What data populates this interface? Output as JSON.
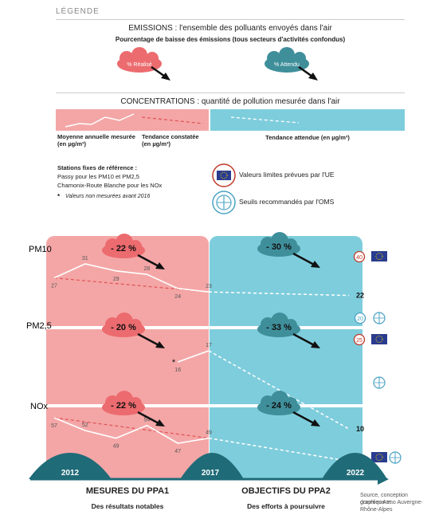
{
  "legend": {
    "tag": "LÉGENDE",
    "emissions_title": "EMISSIONS : l'ensemble des polluants envoyés dans l'air",
    "emissions_subtitle": "Pourcentage de baisse des émissions (tous secteurs d'activités confondus)",
    "cloud_realise": "% Réalisé",
    "cloud_attendu": "% Attendu",
    "concentrations_title": "CONCENTRATIONS : quantité de pollution mesurée dans l'air",
    "moyenne_label": "Moyenne annuelle mesurée (en µg/m³)",
    "tendance_constatee_label": "Tendance constatée (en µg/m³)",
    "tendance_attendue_label": "Tendance attendue (en µg/m³)",
    "stations_title": "Stations fixes de référence :",
    "stations_line1": "Passy pour les PM10 et PM2,5",
    "stations_line2": "Chamonix-Route Blanche pour les NOx",
    "stations_note_star": "*",
    "stations_note": "Valeurs non mesurées avant 2016",
    "ue_label": "Valeurs limites prévues par l'UE",
    "oms_label": "Seuils recommandés par l'OMS"
  },
  "colors": {
    "pink": "#f4a6a6",
    "pink_cloud": "#ec6b6f",
    "blue": "#7ecddc",
    "teal_cloud": "#3f8f9b",
    "dark_teal": "#1f6b78",
    "eu_blue": "#2a3c8f",
    "red_ring": "#c0392b"
  },
  "chart_data": {
    "type": "line",
    "x_ticks": [
      "2012",
      "2017",
      "2022"
    ],
    "sections": [
      {
        "name": "PM10",
        "realise": "- 22 %",
        "attendu": "- 30 %",
        "measured_x": [
          "2012",
          "2013",
          "2014",
          "2015",
          "2016",
          "2017"
        ],
        "measured": [
          27,
          31,
          29,
          28,
          24,
          23
        ],
        "target_2022": "22",
        "oms": "20",
        "ue": "40"
      },
      {
        "name": "PM2,5",
        "realise": "- 20 %",
        "attendu": "- 33 %",
        "measured_x": [
          "2016",
          "2017"
        ],
        "measured": [
          16,
          17
        ],
        "target_2022": "10",
        "ue": "25",
        "oms": ""
      },
      {
        "name": "NOx",
        "realise": "- 22 %",
        "attendu": "- 24 %",
        "measured_x": [
          "2012",
          "2013",
          "2014",
          "2015",
          "2016",
          "2017"
        ],
        "measured": [
          57,
          52,
          49,
          54,
          47,
          49
        ],
        "target_2022": "40",
        "ue": "",
        "oms": ""
      }
    ]
  },
  "footer": {
    "left_title": "MESURES DU PPA1",
    "left_sub": "Des résultats notables",
    "right_title": "OBJECTIFS DU PPA2",
    "right_sub": "Des efforts à poursuivre",
    "source_line1": "Source, conception graphique et",
    "source_line2": "données Atmo Auvergne-Rhône-Alpes"
  }
}
